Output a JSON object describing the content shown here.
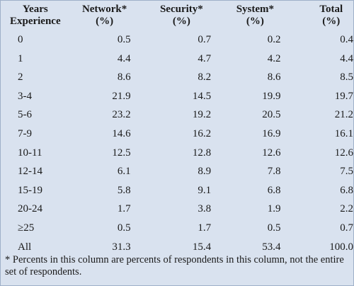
{
  "headers": [
    [
      "Years",
      "Experience"
    ],
    [
      "Network*",
      "(%)"
    ],
    [
      "Security*",
      "(%)"
    ],
    [
      "System*",
      "(%)"
    ],
    [
      "Total",
      "(%)"
    ]
  ],
  "rows": [
    [
      "0",
      "0.5",
      "0.7",
      "0.2",
      "0.4"
    ],
    [
      "1",
      "4.4",
      "4.7",
      "4.2",
      "4.4"
    ],
    [
      "2",
      "8.6",
      "8.2",
      "8.6",
      "8.5"
    ],
    [
      "3-4",
      "21.9",
      "14.5",
      "19.9",
      "19.7"
    ],
    [
      "5-6",
      "23.2",
      "19.2",
      "20.5",
      "21.2"
    ],
    [
      "7-9",
      "14.6",
      "16.2",
      "16.9",
      "16.1"
    ],
    [
      "10-11",
      "12.5",
      "12.8",
      "12.6",
      "12.6"
    ],
    [
      "12-14",
      "6.1",
      "8.9",
      "7.8",
      "7.5"
    ],
    [
      "15-19",
      "5.8",
      "9.1",
      "6.8",
      "6.8"
    ],
    [
      "20-24",
      "1.7",
      "3.8",
      "1.9",
      "2.2"
    ],
    [
      "≥25",
      "0.5",
      "1.7",
      "0.5",
      "0.7"
    ],
    [
      "All",
      "31.3",
      "15.4",
      "53.4",
      "100.0"
    ]
  ],
  "footnote": "* Percents in this column are percents of respondents in this column, not the entire set of respondents."
}
